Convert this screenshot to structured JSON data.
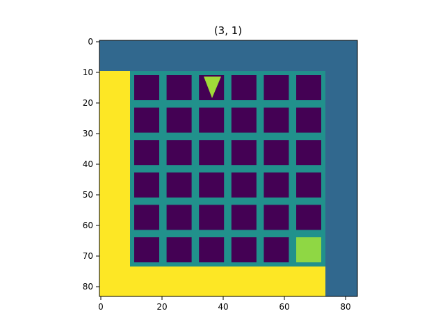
{
  "plot": {
    "title": "(3, 1)",
    "x_ticks": [
      "0",
      "20",
      "40",
      "60",
      "80"
    ],
    "y_ticks": [
      "0",
      "10",
      "20",
      "30",
      "40",
      "50",
      "60",
      "70",
      "80"
    ]
  },
  "game": {
    "grid_size": [
      84,
      84
    ],
    "colors": {
      "background": "#31688e",
      "floor": "#440154",
      "wall": "#fde725",
      "goal": "#8fd744",
      "agent": "#a0da39",
      "grid_line": "#2a788e"
    },
    "board": {
      "cols": 6,
      "rows": 6
    },
    "agent": {
      "col": 3,
      "row": 1,
      "direction": "down"
    },
    "goal": {
      "col": 6,
      "row": 6
    }
  }
}
